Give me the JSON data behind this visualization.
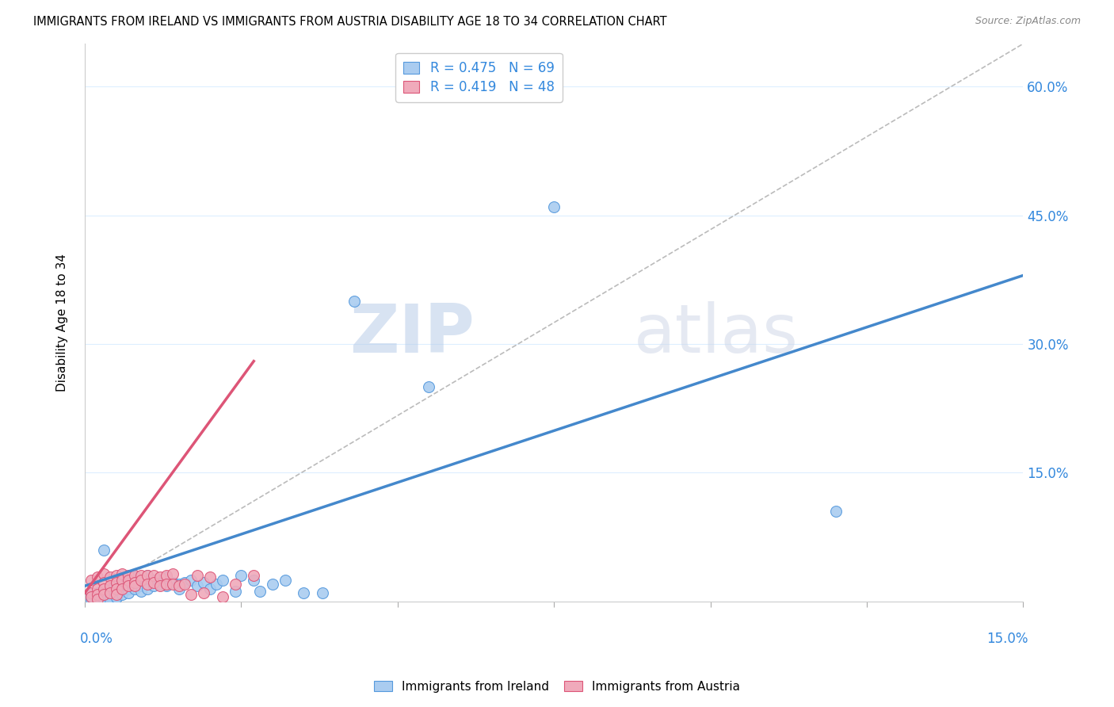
{
  "title": "IMMIGRANTS FROM IRELAND VS IMMIGRANTS FROM AUSTRIA DISABILITY AGE 18 TO 34 CORRELATION CHART",
  "source": "Source: ZipAtlas.com",
  "ylabel": "Disability Age 18 to 34",
  "right_yticks": [
    0.0,
    0.15,
    0.3,
    0.45,
    0.6
  ],
  "right_yticklabels": [
    "",
    "15.0%",
    "30.0%",
    "45.0%",
    "60.0%"
  ],
  "xlim": [
    0.0,
    0.15
  ],
  "ylim": [
    0.0,
    0.65
  ],
  "watermark_zip": "ZIP",
  "watermark_atlas": "atlas",
  "legend_ireland": "R = 0.475   N = 69",
  "legend_austria": "R = 0.419   N = 48",
  "ireland_color": "#aaccf0",
  "austria_color": "#f0aabb",
  "ireland_edge_color": "#5599dd",
  "austria_edge_color": "#dd5577",
  "ireland_line_color": "#4488cc",
  "austria_line_color": "#dd5577",
  "ref_line_color": "#bbbbbb",
  "ireland_x": [
    0.001,
    0.001,
    0.001,
    0.002,
    0.002,
    0.002,
    0.002,
    0.003,
    0.003,
    0.003,
    0.003,
    0.003,
    0.003,
    0.004,
    0.004,
    0.004,
    0.004,
    0.004,
    0.005,
    0.005,
    0.005,
    0.005,
    0.005,
    0.005,
    0.006,
    0.006,
    0.006,
    0.006,
    0.007,
    0.007,
    0.007,
    0.007,
    0.008,
    0.008,
    0.008,
    0.009,
    0.009,
    0.009,
    0.01,
    0.01,
    0.01,
    0.011,
    0.011,
    0.012,
    0.012,
    0.013,
    0.013,
    0.014,
    0.015,
    0.015,
    0.016,
    0.017,
    0.018,
    0.019,
    0.02,
    0.021,
    0.022,
    0.024,
    0.025,
    0.027,
    0.028,
    0.03,
    0.032,
    0.035,
    0.038,
    0.043,
    0.055,
    0.075,
    0.12
  ],
  "ireland_y": [
    0.01,
    0.005,
    0.002,
    0.008,
    0.01,
    0.005,
    0.003,
    0.06,
    0.01,
    0.008,
    0.006,
    0.004,
    0.003,
    0.015,
    0.012,
    0.008,
    0.005,
    0.002,
    0.018,
    0.015,
    0.012,
    0.008,
    0.006,
    0.004,
    0.022,
    0.018,
    0.012,
    0.008,
    0.025,
    0.02,
    0.015,
    0.01,
    0.028,
    0.022,
    0.015,
    0.025,
    0.018,
    0.012,
    0.03,
    0.022,
    0.015,
    0.025,
    0.018,
    0.025,
    0.02,
    0.028,
    0.018,
    0.022,
    0.02,
    0.015,
    0.022,
    0.025,
    0.018,
    0.022,
    0.015,
    0.02,
    0.025,
    0.012,
    0.03,
    0.025,
    0.012,
    0.02,
    0.025,
    0.01,
    0.01,
    0.35,
    0.25,
    0.46,
    0.105
  ],
  "austria_x": [
    0.001,
    0.001,
    0.001,
    0.002,
    0.002,
    0.002,
    0.002,
    0.003,
    0.003,
    0.003,
    0.003,
    0.004,
    0.004,
    0.004,
    0.005,
    0.005,
    0.005,
    0.005,
    0.006,
    0.006,
    0.006,
    0.007,
    0.007,
    0.007,
    0.008,
    0.008,
    0.008,
    0.009,
    0.009,
    0.01,
    0.01,
    0.011,
    0.011,
    0.012,
    0.012,
    0.013,
    0.013,
    0.014,
    0.014,
    0.015,
    0.016,
    0.017,
    0.018,
    0.019,
    0.02,
    0.022,
    0.024,
    0.027
  ],
  "austria_y": [
    0.025,
    0.01,
    0.005,
    0.028,
    0.015,
    0.008,
    0.003,
    0.032,
    0.022,
    0.015,
    0.008,
    0.028,
    0.018,
    0.01,
    0.03,
    0.022,
    0.015,
    0.008,
    0.032,
    0.025,
    0.015,
    0.03,
    0.025,
    0.018,
    0.03,
    0.022,
    0.018,
    0.03,
    0.025,
    0.03,
    0.02,
    0.03,
    0.022,
    0.028,
    0.018,
    0.03,
    0.02,
    0.032,
    0.02,
    0.018,
    0.02,
    0.008,
    0.03,
    0.01,
    0.028,
    0.005,
    0.02,
    0.03
  ],
  "ireland_trend_x": [
    0.0,
    0.15
  ],
  "ireland_trend_y": [
    0.018,
    0.38
  ],
  "austria_trend_x": [
    0.0,
    0.027
  ],
  "austria_trend_y": [
    0.01,
    0.28
  ]
}
